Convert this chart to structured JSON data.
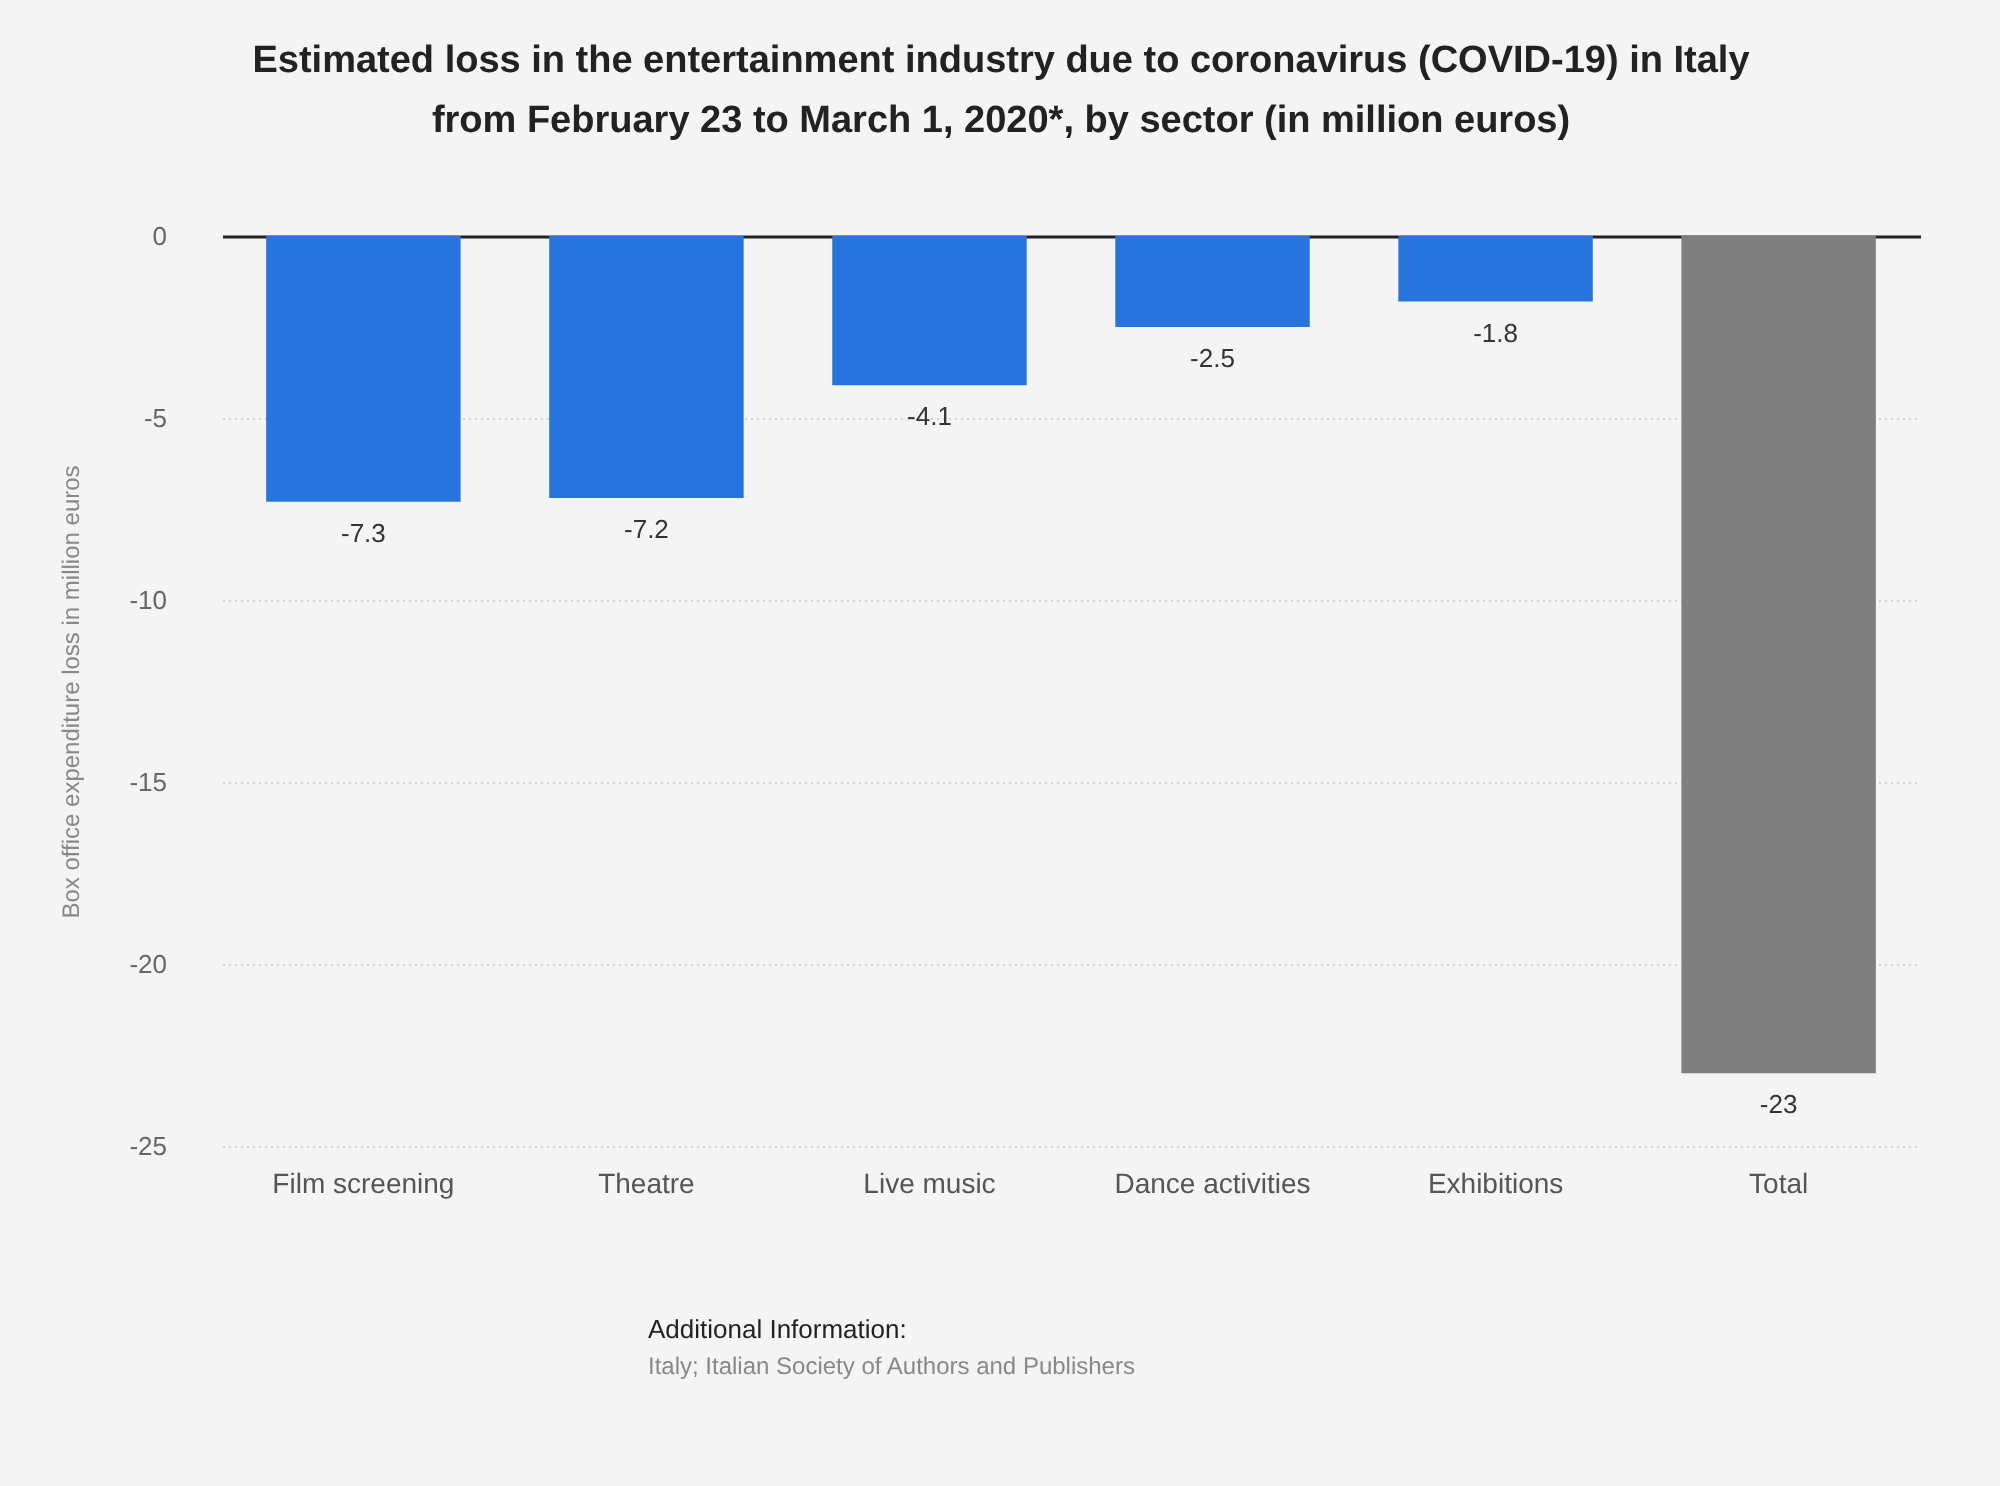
{
  "chart_data": {
    "type": "bar",
    "title": "Estimated loss in the entertainment industry due to coronavirus (COVID-19) in Italy\nfrom February 23 to March 1, 2020*, by sector (in million euros)",
    "ylabel": "Box office expenditure loss in million euros",
    "categories": [
      "Film screening",
      "Theatre",
      "Live music",
      "Dance activities",
      "Exhibitions",
      "Total"
    ],
    "values": [
      -7.3,
      -7.2,
      -4.1,
      -2.5,
      -1.8,
      -23
    ],
    "colors": [
      "#2775dc",
      "#2775dc",
      "#2775dc",
      "#2775dc",
      "#2775dc",
      "#7f7f7f"
    ],
    "ylim": [
      -25,
      0
    ],
    "yticks": [
      0,
      -5,
      -10,
      -15,
      -20,
      -25
    ],
    "grid": "y",
    "data_labels": true,
    "annotations": [
      "Additional Information:",
      "Italy; Italian Society of Authors and Publishers"
    ]
  }
}
